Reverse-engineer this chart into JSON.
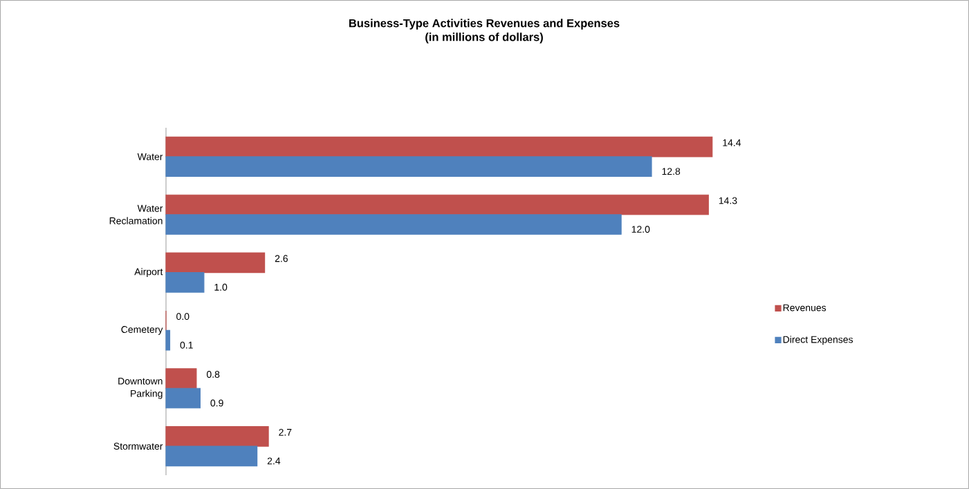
{
  "chart_data": {
    "type": "bar",
    "orientation": "horizontal",
    "title": "Business-Type Activities Revenues and Expenses",
    "subtitle": "(in millions of dollars)",
    "categories": [
      "Water",
      "Water Reclamation",
      "Airport",
      "Cemetery",
      "Downtown Parking",
      "Stormwater"
    ],
    "series": [
      {
        "name": "Revenues",
        "color": "#c0504d",
        "values": [
          14.4,
          14.3,
          2.6,
          0.0,
          0.8,
          2.7
        ],
        "value_labels": [
          "14.4",
          "14.3",
          "2.6",
          "0.0",
          "0.8",
          "2.7"
        ]
      },
      {
        "name": "Direct Expenses",
        "color": "#4f81bd",
        "values": [
          12.8,
          12.0,
          1.0,
          0.1,
          0.9,
          2.4
        ],
        "value_labels": [
          "12.8",
          "12.0",
          "1.0",
          "0.1",
          "0.9",
          "2.4"
        ]
      }
    ],
    "legend": "right"
  }
}
